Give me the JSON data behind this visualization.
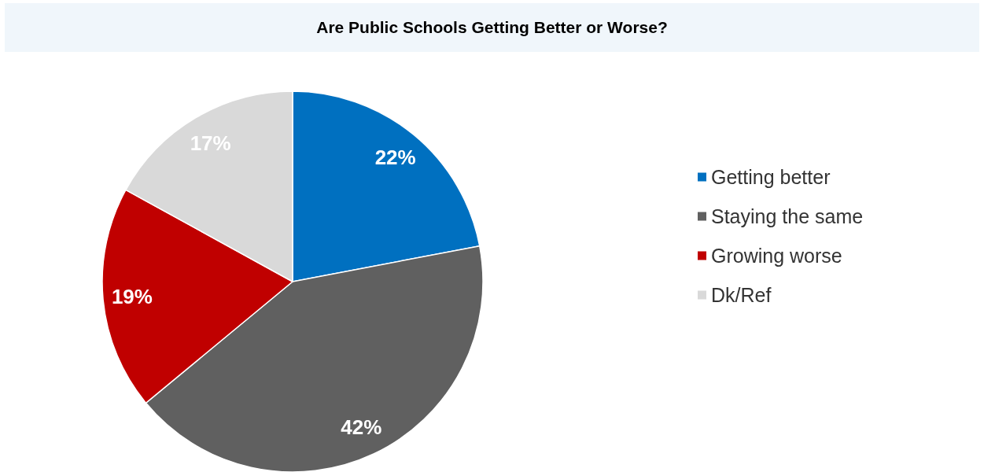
{
  "chart_data": {
    "type": "pie",
    "title": "Are Public Schools Getting Better or Worse?",
    "categories": [
      "Getting better",
      "Staying the same",
      "Growing worse",
      "Dk/Ref"
    ],
    "values": [
      22,
      42,
      19,
      17
    ],
    "colors": [
      "#0070c0",
      "#606060",
      "#c00000",
      "#d9d9d9"
    ],
    "value_labels": [
      "22%",
      "42%",
      "19%",
      "17%"
    ],
    "legend": "right"
  }
}
